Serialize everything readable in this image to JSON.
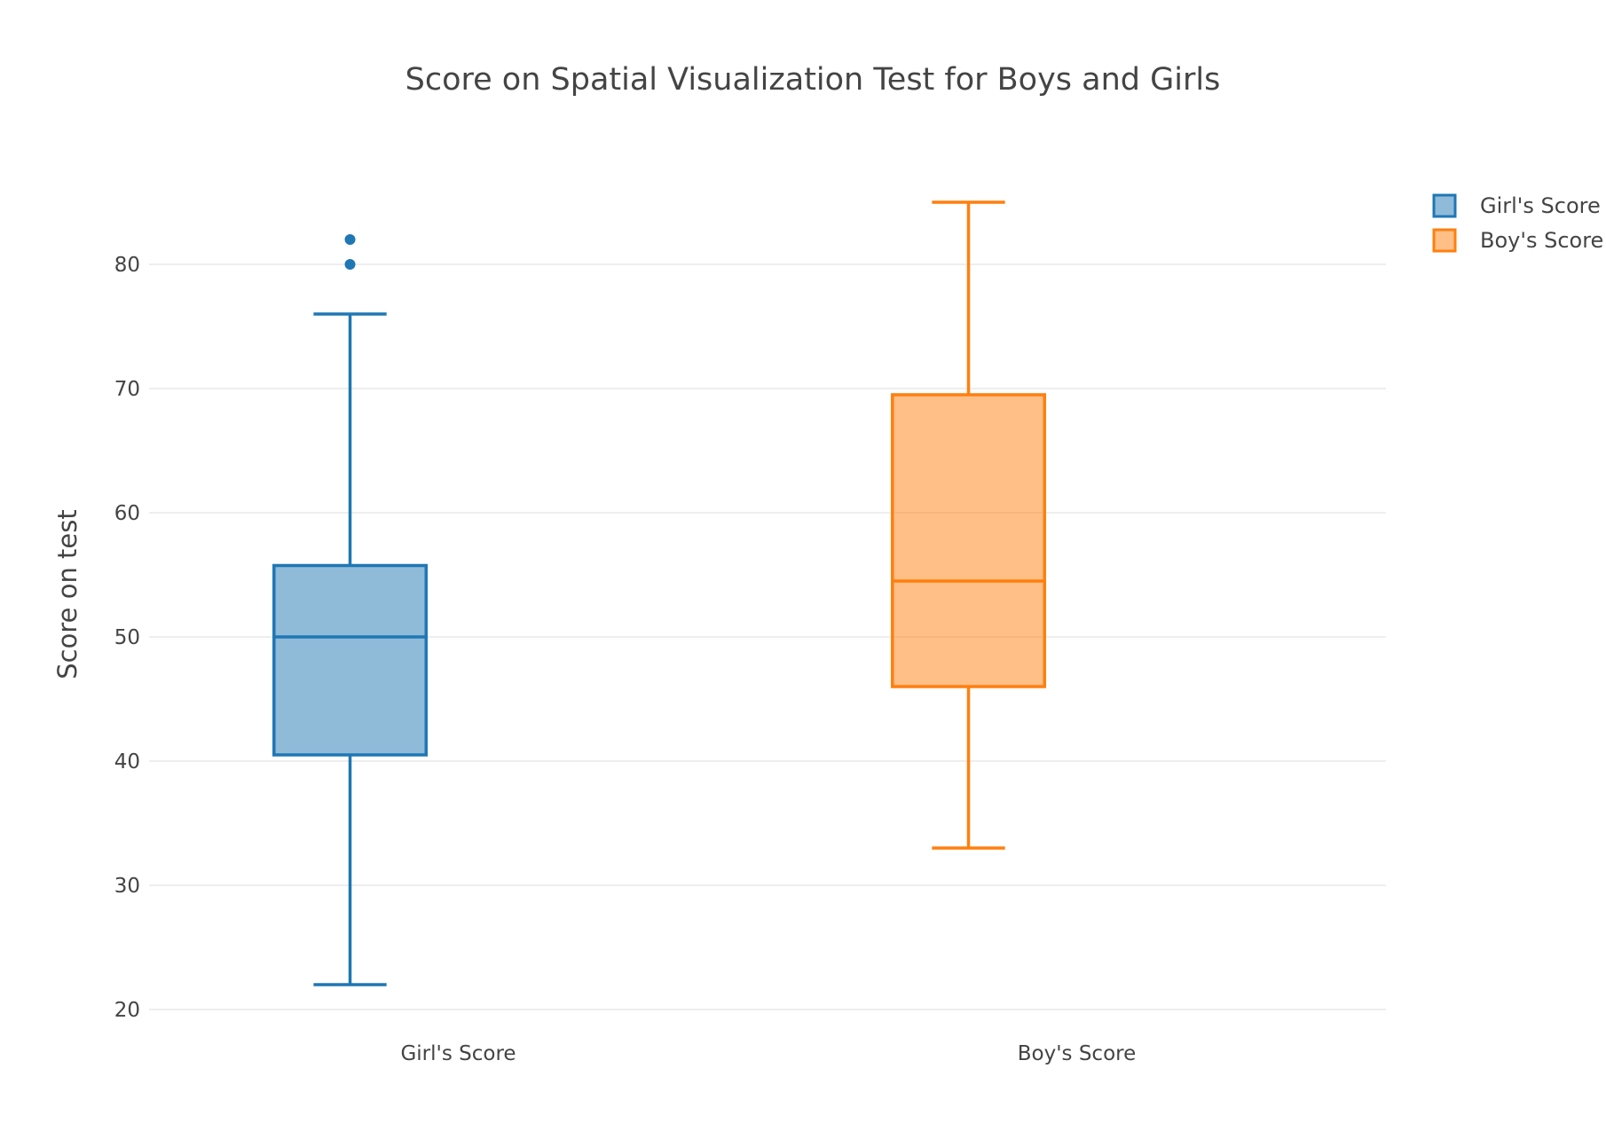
{
  "chart_data": {
    "type": "box",
    "title": "Score on Spatial Visualization Test for Boys and Girls",
    "xlabel": "",
    "ylabel": "Score on test",
    "ylim": [
      19.5,
      87
    ],
    "yticks": [
      20,
      30,
      40,
      50,
      60,
      70,
      80
    ],
    "grid": true,
    "legend_position": "top-right",
    "categories": [
      "Girl's Score",
      "Boy's Score"
    ],
    "series": [
      {
        "name": "Girl's Score",
        "color": "#1f77b4",
        "fill": "rgba(31,119,180,0.5)",
        "whisker_low": 22,
        "q1": 40.5,
        "median": 50,
        "q3": 55.75,
        "whisker_high": 76,
        "outliers": [
          80,
          82
        ]
      },
      {
        "name": "Boy's Score",
        "color": "#ff7f0e",
        "fill": "rgba(255,127,14,0.5)",
        "whisker_low": 33,
        "q1": 46,
        "median": 54.5,
        "q3": 69.5,
        "whisker_high": 85,
        "outliers": []
      }
    ]
  }
}
